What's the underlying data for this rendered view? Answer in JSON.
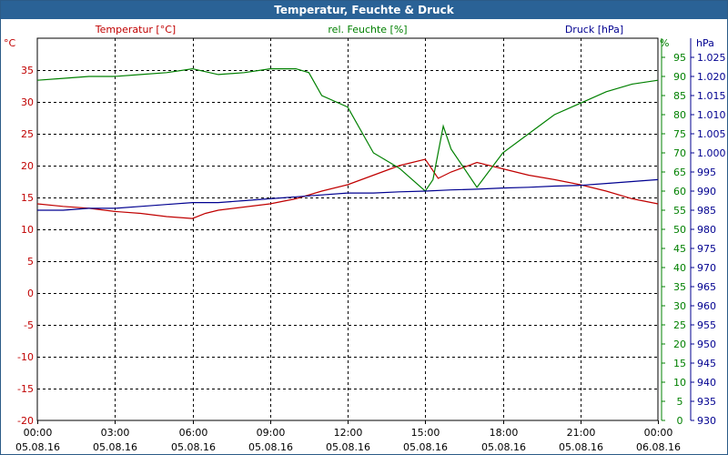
{
  "window": {
    "title": "Temperatur, Feuchte & Druck"
  },
  "colors": {
    "temperature": "#c00000",
    "humidity": "#008000",
    "pressure": "#000090",
    "grid": "#000000",
    "frame": "#2a6296"
  },
  "chart_data": {
    "type": "line",
    "grid": true,
    "legend_placement": "top",
    "axes": {
      "temperature": {
        "label": "Temperatur [°C]",
        "unit": "°C",
        "range": [
          -20,
          40
        ],
        "ticks": [
          35,
          30,
          25,
          20,
          15,
          10,
          5,
          0,
          -5,
          -10,
          -15,
          -20
        ]
      },
      "humidity": {
        "label": "rel. Feuchte [%]",
        "unit": "%",
        "range": [
          0,
          100
        ],
        "ticks": [
          95,
          90,
          85,
          80,
          75,
          70,
          65,
          60,
          55,
          50,
          45,
          40,
          35,
          30,
          25,
          20,
          15,
          10,
          5,
          0
        ]
      },
      "pressure": {
        "label": "Druck [hPa]",
        "unit": "hPa",
        "range": [
          930,
          1030
        ],
        "ticks": [
          "1.025",
          "1.020",
          "1.015",
          "1.010",
          "1.005",
          "1.000",
          "995",
          "990",
          "985",
          "980",
          "975",
          "970",
          "965",
          "960",
          "955",
          "950",
          "945",
          "940",
          "935",
          "930"
        ]
      }
    },
    "x_range_hours": [
      0,
      24
    ],
    "x_ticks": [
      {
        "time": "00:00",
        "date": "05.08.16"
      },
      {
        "time": "03:00",
        "date": "05.08.16"
      },
      {
        "time": "06:00",
        "date": "05.08.16"
      },
      {
        "time": "09:00",
        "date": "05.08.16"
      },
      {
        "time": "12:00",
        "date": "05.08.16"
      },
      {
        "time": "15:00",
        "date": "05.08.16"
      },
      {
        "time": "18:00",
        "date": "05.08.16"
      },
      {
        "time": "21:00",
        "date": "05.08.16"
      },
      {
        "time": "00:00",
        "date": "06.08.16"
      }
    ],
    "series": [
      {
        "name": "Temperatur [°C]",
        "axis": "temperature",
        "points": [
          [
            0,
            14
          ],
          [
            1,
            13.6
          ],
          [
            2,
            13.3
          ],
          [
            3,
            12.8
          ],
          [
            4,
            12.5
          ],
          [
            5,
            12
          ],
          [
            6,
            11.7
          ],
          [
            6.5,
            12.5
          ],
          [
            7,
            13
          ],
          [
            8,
            13.5
          ],
          [
            9,
            14
          ],
          [
            10,
            14.8
          ],
          [
            11,
            16
          ],
          [
            12,
            17
          ],
          [
            13,
            18.5
          ],
          [
            14,
            20
          ],
          [
            15,
            21
          ],
          [
            15.5,
            18
          ],
          [
            16,
            19
          ],
          [
            17,
            20.5
          ],
          [
            18,
            19.5
          ],
          [
            19,
            18.5
          ],
          [
            20,
            17.8
          ],
          [
            21,
            17
          ],
          [
            22,
            16
          ],
          [
            23,
            14.8
          ],
          [
            24,
            14
          ]
        ]
      },
      {
        "name": "rel. Feuchte [%]",
        "axis": "humidity",
        "points": [
          [
            0,
            89
          ],
          [
            1,
            89.5
          ],
          [
            2,
            90
          ],
          [
            3,
            90
          ],
          [
            4,
            90.5
          ],
          [
            5,
            91
          ],
          [
            6,
            92
          ],
          [
            7,
            90.5
          ],
          [
            8,
            91
          ],
          [
            9,
            92
          ],
          [
            10,
            92
          ],
          [
            10.5,
            91
          ],
          [
            11,
            85
          ],
          [
            12,
            82
          ],
          [
            13,
            70
          ],
          [
            14,
            66
          ],
          [
            15,
            60
          ],
          [
            15.3,
            63
          ],
          [
            15.7,
            77
          ],
          [
            16,
            71
          ],
          [
            17,
            61
          ],
          [
            18,
            70
          ],
          [
            19,
            75
          ],
          [
            20,
            80
          ],
          [
            21,
            83
          ],
          [
            22,
            86
          ],
          [
            23,
            88
          ],
          [
            24,
            89
          ]
        ]
      },
      {
        "name": "Druck [hPa]",
        "axis": "pressure",
        "points": [
          [
            0,
            985
          ],
          [
            1,
            985
          ],
          [
            2,
            985.5
          ],
          [
            3,
            985.5
          ],
          [
            4,
            986
          ],
          [
            5,
            986.5
          ],
          [
            6,
            987
          ],
          [
            7,
            987
          ],
          [
            8,
            987.5
          ],
          [
            9,
            988
          ],
          [
            10,
            988.5
          ],
          [
            11,
            989
          ],
          [
            12,
            989.5
          ],
          [
            13,
            989.5
          ],
          [
            14,
            989.8
          ],
          [
            15,
            990
          ],
          [
            16,
            990.3
          ],
          [
            17,
            990.5
          ],
          [
            18,
            990.8
          ],
          [
            19,
            991
          ],
          [
            20,
            991.3
          ],
          [
            21,
            991.5
          ],
          [
            22,
            992
          ],
          [
            23,
            992.5
          ],
          [
            24,
            993
          ]
        ]
      }
    ]
  }
}
